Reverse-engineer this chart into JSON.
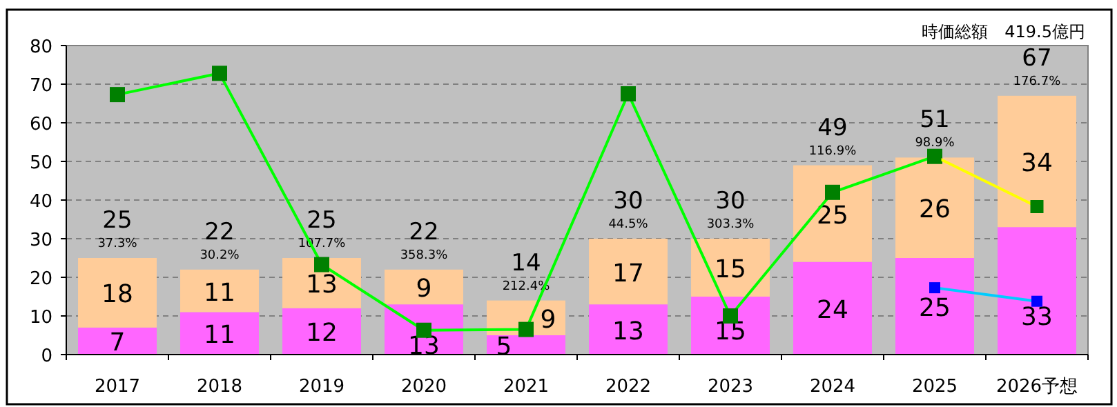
{
  "chart_data": {
    "type": "bar",
    "title": "時価総額　419.5億円",
    "categories": [
      "2017",
      "2018",
      "2019",
      "2020",
      "2021",
      "2022",
      "2023",
      "2024",
      "2025",
      "2026予想"
    ],
    "stacked": true,
    "grid": "y",
    "ylim": [
      0,
      80
    ],
    "yticks": [
      0,
      10,
      20,
      30,
      40,
      50,
      60,
      70,
      80
    ],
    "series": [
      {
        "color": "#ff66ff",
        "values": [
          7,
          11,
          12,
          13,
          5,
          13,
          15,
          24,
          25,
          33
        ],
        "value_labels": [
          "7",
          "11",
          "12",
          "13",
          "5",
          "13",
          "15",
          "24",
          "25",
          "33"
        ]
      },
      {
        "color": "#ffcc99",
        "values": [
          18,
          11,
          13,
          9,
          9,
          17,
          15,
          25,
          26,
          34
        ],
        "value_labels": [
          "18",
          "11",
          "13",
          "9",
          "9",
          "17",
          "15",
          "25",
          "26",
          "34"
        ]
      },
      {
        "type": "line",
        "color": "#00ff00",
        "marker": "square",
        "values": [
          67.3,
          72.8,
          23.3,
          6.3,
          6.5,
          67.5,
          10,
          42,
          51.3,
          null
        ]
      },
      {
        "type": "line",
        "color": "#ffff00",
        "marker": "square",
        "values": [
          null,
          null,
          null,
          null,
          null,
          null,
          null,
          null,
          51.3,
          38.3
        ]
      },
      {
        "type": "line",
        "color": "#00ccff",
        "marker": "square",
        "values": [
          null,
          null,
          null,
          null,
          null,
          null,
          null,
          null,
          17.3,
          13.8
        ]
      }
    ],
    "totals": [
      "25",
      "22",
      "25",
      "22",
      "14",
      "30",
      "30",
      "49",
      "51",
      "67"
    ],
    "annotations": [
      {
        "text": "37.3%",
        "x": "2017",
        "y": 25
      },
      {
        "text": "30.2%",
        "x": "2018",
        "y": 22
      },
      {
        "text": "107.7%",
        "x": "2019",
        "y": 25
      },
      {
        "text": "358.3%",
        "x": "2020",
        "y": 22
      },
      {
        "text": "212.4%",
        "x": "2021",
        "y": 14
      },
      {
        "text": "44.5%",
        "x": "2022",
        "y": 30
      },
      {
        "text": "303.3%",
        "x": "2023",
        "y": 30
      },
      {
        "text": "116.9%",
        "x": "2024",
        "y": 49
      },
      {
        "text": "98.9%",
        "x": "2025",
        "y": 51
      },
      {
        "text": "176.7%",
        "x": "2026予想",
        "y": 67
      }
    ]
  }
}
